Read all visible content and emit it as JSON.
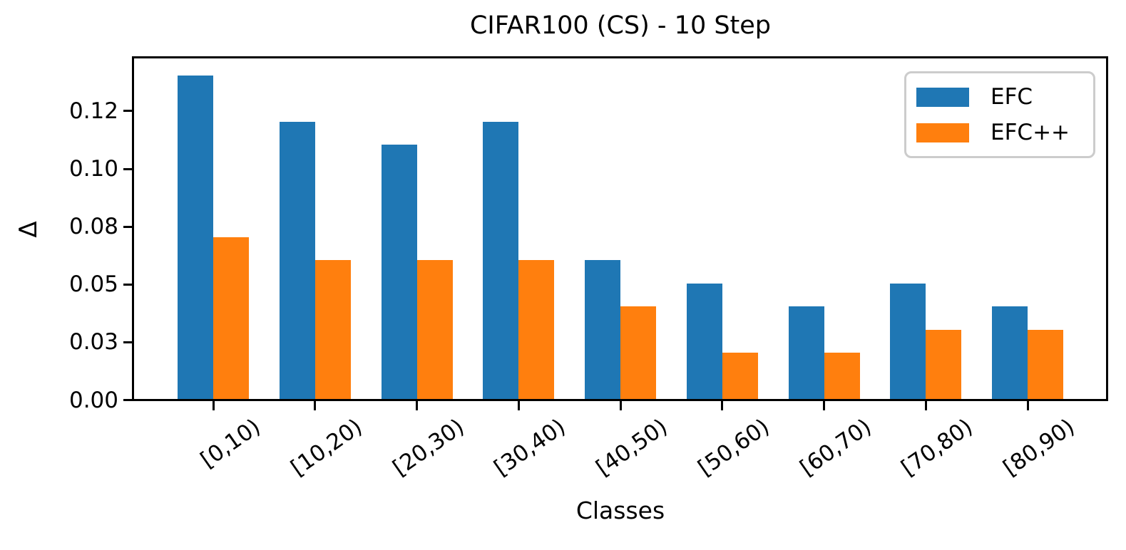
{
  "chart_data": {
    "type": "bar",
    "title": "CIFAR100 (CS) - 10 Step",
    "xlabel": "Classes",
    "ylabel": "Δ",
    "categories": [
      "[0,10)",
      "[10,20)",
      "[20,30)",
      "[30,40)",
      "[40,50)",
      "[50,60)",
      "[60,70)",
      "[70,80)",
      "[80,90)"
    ],
    "series": [
      {
        "name": "EFC",
        "color": "#1f77b4",
        "values": [
          0.14,
          0.12,
          0.11,
          0.12,
          0.06,
          0.05,
          0.04,
          0.05,
          0.04
        ]
      },
      {
        "name": "EFC++",
        "color": "#ff7f0e",
        "values": [
          0.07,
          0.06,
          0.06,
          0.06,
          0.04,
          0.02,
          0.02,
          0.03,
          0.03
        ]
      }
    ],
    "ylim": [
      0,
      0.1475
    ],
    "yticks": {
      "values": [
        0,
        0.025,
        0.05,
        0.075,
        0.1,
        0.125
      ],
      "labels": [
        "0.00",
        "0.03",
        "0.05",
        "0.08",
        "0.10",
        "0.12"
      ]
    },
    "xtick_rotation_deg": 35,
    "legend_position": "upper right",
    "grid": false,
    "background_color": "#ffffff",
    "axis_color": "#000000"
  }
}
